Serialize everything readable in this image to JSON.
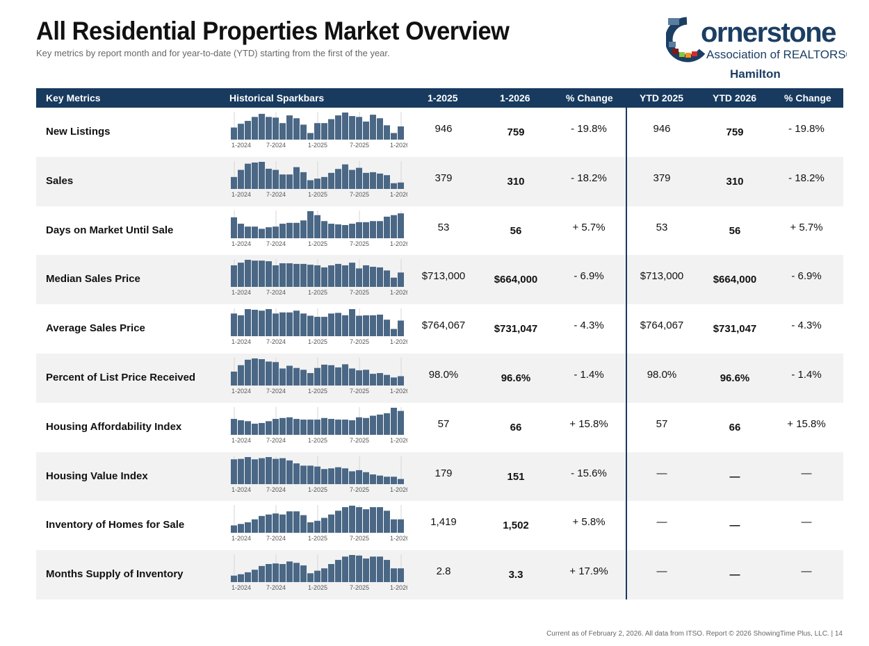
{
  "header": {
    "title": "All Residential Properties Market Overview",
    "subtitle": "Key metrics by report month and for year-to-date (YTD) starting from the first of the year.",
    "logo_text": "Cornerstone",
    "logo_subtext": "Association of REALTORS®",
    "region": "Hamilton"
  },
  "columns": [
    "Key Metrics",
    "Historical Sparkbars",
    "1-2025",
    "1-2026",
    "% Change",
    "YTD 2025",
    "YTD 2026",
    "% Change"
  ],
  "spark_labels": [
    "1-2024",
    "7-2024",
    "1-2025",
    "7-2025",
    "1-2026"
  ],
  "colors": {
    "header_bg": "#173a5e",
    "bar": "#4a6785",
    "alt_row": "#f2f2f2"
  },
  "rows": [
    {
      "metric": "New Listings",
      "m2025": "946",
      "m2026": "759",
      "change": "- 19.8%",
      "ytd2025": "946",
      "ytd2026": "759",
      "ytd_change": "- 19.8%",
      "spark_relative": [
        55,
        72,
        85,
        103,
        117,
        103,
        100,
        75,
        110,
        97,
        68,
        30,
        75,
        75,
        93,
        110,
        123,
        107,
        103,
        82,
        113,
        97,
        65,
        30,
        60
      ]
    },
    {
      "metric": "Sales",
      "m2025": "379",
      "m2026": "310",
      "change": "- 18.2%",
      "ytd2025": "379",
      "ytd2026": "310",
      "ytd_change": "- 18.2%",
      "spark_relative": [
        52,
        83,
        110,
        115,
        118,
        88,
        83,
        63,
        63,
        95,
        73,
        38,
        45,
        52,
        70,
        87,
        107,
        83,
        92,
        70,
        73,
        67,
        60,
        25,
        28
      ]
    },
    {
      "metric": "Days on Market Until Sale",
      "m2025": "53",
      "m2026": "56",
      "change": "+ 5.7%",
      "ytd2025": "53",
      "ytd2026": "56",
      "ytd_change": "+ 5.7%",
      "spark_relative": [
        95,
        66,
        53,
        53,
        43,
        50,
        53,
        66,
        70,
        70,
        81,
        123,
        105,
        78,
        66,
        63,
        60,
        66,
        73,
        73,
        78,
        78,
        98,
        105,
        113
      ]
    },
    {
      "metric": "Median Sales Price",
      "m2025": "$713,000",
      "m2026": "$664,000",
      "change": "- 6.9%",
      "ytd2025": "$713,000",
      "ytd2026": "$664,000",
      "ytd_change": "- 6.9%",
      "spark_relative": [
        105,
        118,
        132,
        128,
        128,
        125,
        105,
        115,
        115,
        112,
        112,
        108,
        105,
        95,
        105,
        112,
        105,
        118,
        90,
        105,
        98,
        95,
        80,
        45,
        70
      ]
    },
    {
      "metric": "Average Sales Price",
      "m2025": "$764,067",
      "m2026": "$731,047",
      "change": "- 4.3%",
      "ytd2025": "$764,067",
      "ytd2026": "$731,047",
      "ytd_change": "- 4.3%",
      "spark_relative": [
        103,
        95,
        123,
        120,
        116,
        123,
        103,
        108,
        108,
        116,
        103,
        93,
        88,
        88,
        103,
        106,
        95,
        123,
        93,
        95,
        95,
        98,
        75,
        33,
        71
      ]
    },
    {
      "metric": "Percent of List Price Received",
      "m2025": "98.0%",
      "m2026": "96.6%",
      "change": "- 1.4%",
      "ytd2025": "98.0%",
      "ytd2026": "96.6%",
      "ytd_change": "- 1.4%",
      "spark_relative": [
        76,
        111,
        141,
        148,
        144,
        131,
        128,
        93,
        108,
        96,
        86,
        68,
        96,
        114,
        111,
        99,
        116,
        93,
        83,
        86,
        64,
        68,
        58,
        44,
        51
      ]
    },
    {
      "metric": "Housing Affordability Index",
      "m2025": "57",
      "m2026": "66",
      "change": "+ 15.8%",
      "ytd2025": "57",
      "ytd2026": "66",
      "ytd_change": "+ 15.8%",
      "spark_relative": [
        70,
        64,
        60,
        49,
        52,
        60,
        70,
        74,
        77,
        70,
        67,
        67,
        67,
        74,
        70,
        67,
        67,
        64,
        77,
        74,
        84,
        89,
        95,
        119,
        105
      ]
    },
    {
      "metric": "Housing Value Index",
      "m2025": "179",
      "m2026": "151",
      "change": "- 15.6%",
      "ytd2025": "—",
      "ytd2026": "—",
      "ytd_change": "—",
      "spark_relative": [
        110,
        112,
        120,
        110,
        115,
        120,
        112,
        115,
        105,
        92,
        82,
        82,
        78,
        67,
        70,
        75,
        70,
        57,
        62,
        53,
        43,
        38,
        33,
        33,
        23
      ]
    },
    {
      "metric": "Inventory of Homes for Sale",
      "m2025": "1,419",
      "m2026": "1,502",
      "change": "+ 5.8%",
      "ytd2025": "—",
      "ytd2026": "—",
      "ytd_change": "—",
      "spark_relative": [
        35,
        42,
        50,
        64,
        80,
        87,
        92,
        87,
        102,
        102,
        84,
        50,
        57,
        71,
        87,
        105,
        122,
        129,
        122,
        112,
        122,
        122,
        105,
        64,
        64
      ]
    },
    {
      "metric": "Months Supply of Inventory",
      "m2025": "2.8",
      "m2026": "3.3",
      "change": "+ 17.9%",
      "ytd2025": "—",
      "ytd2026": "—",
      "ytd_change": "—",
      "spark_relative": [
        33,
        40,
        50,
        63,
        82,
        92,
        95,
        92,
        105,
        98,
        85,
        45,
        58,
        70,
        92,
        113,
        130,
        138,
        135,
        120,
        130,
        130,
        113,
        70,
        70
      ]
    }
  ],
  "footer": "Current as of February 2, 2026. All data from ITSO. Report © 2026 ShowingTime Plus, LLC.  |  14"
}
